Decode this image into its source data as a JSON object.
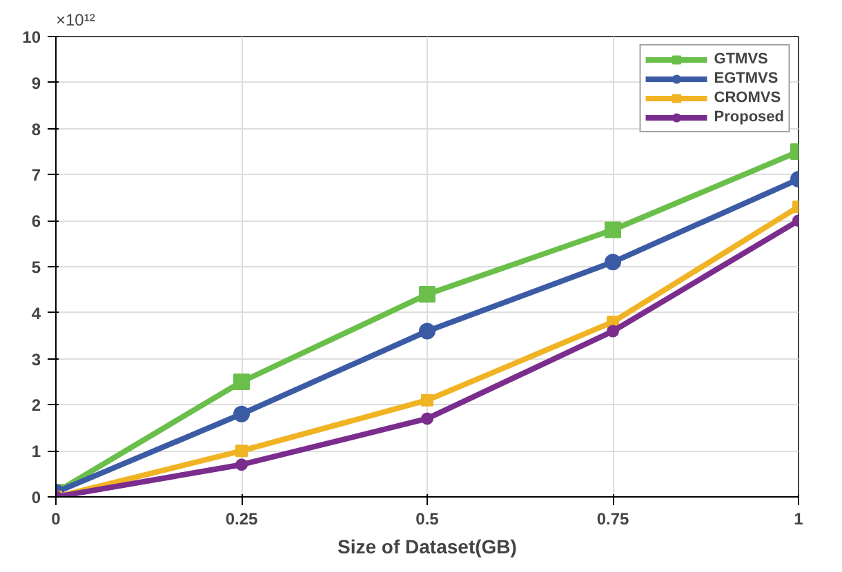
{
  "chart_data": {
    "type": "line",
    "xlabel": "Size of Dataset(GB)",
    "x": [
      0,
      0.25,
      0.5,
      0.75,
      1
    ],
    "series": [
      {
        "name": "GTMVS",
        "color": "#6abf4b",
        "marker": "square",
        "values": [
          0.1,
          2.5,
          4.4,
          5.8,
          7.5
        ]
      },
      {
        "name": "EGTMVS",
        "color": "#3b5ba5",
        "marker": "circle",
        "values": [
          0.1,
          1.8,
          3.6,
          5.1,
          6.9
        ]
      },
      {
        "name": "CROMVS",
        "color": "#f0b323",
        "marker": "square",
        "values": [
          0,
          1.0,
          2.1,
          3.8,
          6.3
        ]
      },
      {
        "name": "Proposed",
        "color": "#7b2d8e",
        "marker": "circle",
        "values": [
          0,
          0.7,
          1.7,
          3.6,
          6.0
        ]
      }
    ],
    "xlim": [
      0,
      1
    ],
    "xticks": [
      0,
      0.25,
      0.5,
      0.75,
      1
    ],
    "ylim": [
      0,
      10
    ],
    "yticks": [
      0,
      1,
      2,
      3,
      4,
      5,
      6,
      7,
      8,
      9,
      10
    ],
    "annotations": [
      "×10¹²"
    ],
    "grid": true,
    "legend": "top right",
    "line_style": "solid"
  }
}
